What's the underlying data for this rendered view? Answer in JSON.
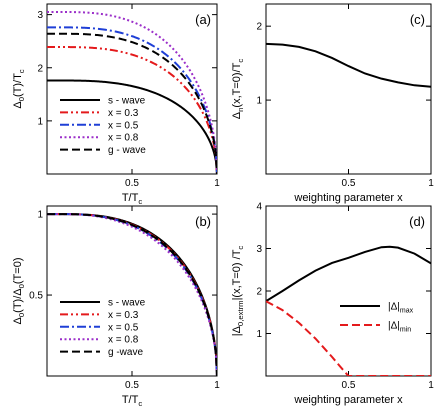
{
  "chart_data": [
    {
      "panel": "(a)",
      "type": "line",
      "xlabel": "T/T",
      "xlabel_sub": "c",
      "ylabel": "Δ",
      "ylabel_sub": "0",
      "ylabel_rest": "(T)/T",
      "ylabel_sub2": "c",
      "xlim": [
        0,
        1
      ],
      "ylim": [
        0,
        3.2
      ],
      "xticks": [
        0.5,
        1
      ],
      "xticklabels": [
        "0.5",
        "1"
      ],
      "yticks": [
        0,
        1,
        2,
        3
      ],
      "yticklabels": [
        "0",
        "1",
        "2",
        "3"
      ],
      "legend_position": "lower-left",
      "gap_curve": "bcs",
      "series": [
        {
          "name": "s - wave",
          "delta0": 1.76,
          "color": "#000000",
          "dash": "solid"
        },
        {
          "name": "x = 0.3",
          "delta0": 2.39,
          "color": "#e41a1c",
          "dash": "dashdotdot"
        },
        {
          "name": "x = 0.5",
          "delta0": 2.76,
          "color": "#1f3fd6",
          "dash": "dashdot"
        },
        {
          "name": "x = 0.8",
          "delta0": 3.05,
          "color": "#9b2fc9",
          "dash": "dotted"
        },
        {
          "name": "g - wave",
          "delta0": 2.64,
          "color": "#000000",
          "dash": "dashed"
        }
      ]
    },
    {
      "panel": "(b)",
      "type": "line",
      "xlabel": "T/T",
      "xlabel_sub": "c",
      "ylabel": "Δ",
      "ylabel_sub": "0",
      "ylabel_mid": "(T)/Δ",
      "ylabel_sub2": "0",
      "ylabel_rest": "(T=0)",
      "xlim": [
        0,
        1
      ],
      "ylim": [
        0,
        1.05
      ],
      "xticks": [
        0.5,
        1
      ],
      "xticklabels": [
        "0.5",
        "1"
      ],
      "yticks": [
        0,
        0.5,
        1
      ],
      "yticklabels": [
        "0",
        "0.5",
        "1"
      ],
      "legend_position": "lower-left",
      "gap_curve": "bcs",
      "series": [
        {
          "name": "s - wave",
          "color": "#000000",
          "dash": "solid",
          "alpha": 1.74
        },
        {
          "name": "x = 0.3",
          "color": "#e41a1c",
          "dash": "dashdotdot",
          "alpha": 1.7
        },
        {
          "name": "x = 0.5",
          "color": "#1f3fd6",
          "dash": "dashdot",
          "alpha": 1.66
        },
        {
          "name": "x = 0.8",
          "color": "#9b2fc9",
          "dash": "dotted",
          "alpha": 1.6
        },
        {
          "name": "g -wave",
          "color": "#000000",
          "dash": "dashed",
          "alpha": 1.68
        }
      ]
    },
    {
      "panel": "(c)",
      "type": "line",
      "xlabel": "weighting parameter x",
      "ylabel": "Δ",
      "ylabel_sub": "n",
      "ylabel_rest": "(x,T=0)/T",
      "ylabel_sub2": "c",
      "xlim": [
        0,
        1
      ],
      "ylim": [
        0,
        2.3
      ],
      "xticks": [
        0.5,
        1
      ],
      "xticklabels": [
        "0.5",
        "1"
      ],
      "yticks": [
        0,
        1,
        2
      ],
      "yticklabels": [
        "0",
        "1",
        "2"
      ],
      "series": [
        {
          "color": "#000000",
          "dash": "solid",
          "x": [
            0,
            0.1,
            0.2,
            0.3,
            0.4,
            0.5,
            0.6,
            0.7,
            0.8,
            0.9,
            1.0
          ],
          "y": [
            1.76,
            1.75,
            1.72,
            1.66,
            1.57,
            1.46,
            1.36,
            1.29,
            1.24,
            1.2,
            1.18
          ]
        }
      ]
    },
    {
      "panel": "(d)",
      "type": "line",
      "xlabel": "weighting parameter x",
      "ylabel": "|Δ",
      "ylabel_sub": "0,extrm",
      "ylabel_rest": "|(x,T=0) /T",
      "ylabel_sub2": "c",
      "xlim": [
        0,
        1
      ],
      "ylim": [
        0,
        4
      ],
      "xticks": [
        0.5,
        1
      ],
      "xticklabels": [
        "0.5",
        "1"
      ],
      "yticks": [
        0,
        1,
        2,
        3,
        4
      ],
      "yticklabels": [
        "0",
        "1",
        "2",
        "3",
        "4"
      ],
      "legend_position": "right",
      "series": [
        {
          "name": "|Δ|",
          "name_sub": "max",
          "color": "#000000",
          "dash": "solid",
          "x": [
            0,
            0.1,
            0.2,
            0.3,
            0.4,
            0.5,
            0.6,
            0.7,
            0.75,
            0.8,
            0.9,
            1.0
          ],
          "y": [
            1.76,
            2.0,
            2.25,
            2.48,
            2.66,
            2.78,
            2.92,
            3.03,
            3.04,
            3.02,
            2.88,
            2.65
          ]
        },
        {
          "name": "|Δ|",
          "name_sub": "min",
          "color": "#e41a1c",
          "dash": "dashed",
          "x": [
            0,
            0.1,
            0.2,
            0.3,
            0.4,
            0.45,
            0.5,
            0.6,
            0.7,
            0.8,
            0.9,
            1.0
          ],
          "y": [
            1.76,
            1.55,
            1.25,
            0.88,
            0.45,
            0.22,
            0,
            0,
            0,
            0,
            0,
            0
          ]
        }
      ]
    }
  ]
}
